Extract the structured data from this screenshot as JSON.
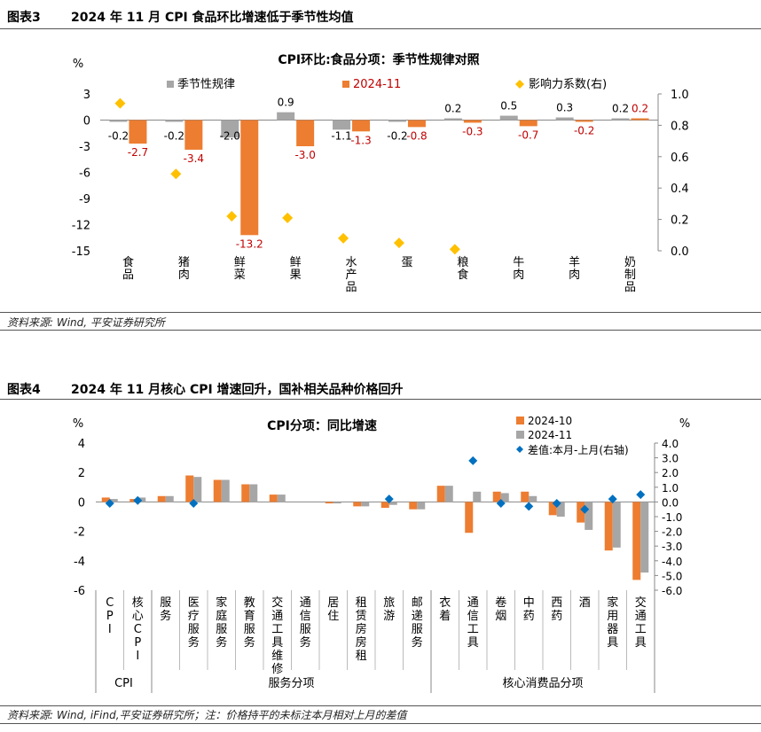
{
  "fig3": {
    "label": "图表3",
    "heading": "2024 年 11 月 CPI 食品环比增速低于季节性均值",
    "source": "资料来源: Wind, 平安证券研究所"
  },
  "fig4": {
    "label": "图表4",
    "heading": "2024 年 11 月核心 CPI 增速回升，国补相关品种价格回升",
    "source": "资料来源: Wind, iFind,平安证券研究所；注：价格持平的未标注本月相对上月的差值"
  },
  "chart_data": [
    {
      "type": "bar",
      "title": "CPI环比:食品分项：季节性规律对照",
      "ylabel_left": "%",
      "categories": [
        "食品",
        "猪肉",
        "鲜菜",
        "鲜果",
        "水产品",
        "蛋",
        "粮食",
        "牛肉",
        "羊肉",
        "奶制品"
      ],
      "series": [
        {
          "name": "季节性规律",
          "color": "#a6a6a6",
          "values": [
            -0.2,
            -0.2,
            -2.0,
            0.9,
            -1.1,
            -0.2,
            0.2,
            0.5,
            0.3,
            0.2
          ]
        },
        {
          "name": "2024-11",
          "color": "#ed7d31",
          "values": [
            -2.7,
            -3.4,
            -13.2,
            -3.0,
            -1.3,
            -0.8,
            -0.3,
            -0.7,
            -0.2,
            0.2
          ]
        }
      ],
      "scatter": {
        "name": "影响力系数(右)",
        "axis": "right",
        "color": "#ffc000",
        "values": [
          0.94,
          0.49,
          0.22,
          0.21,
          0.08,
          0.05,
          0.01,
          null,
          null,
          null
        ]
      },
      "ylim_left": [
        -15,
        3
      ],
      "yticks_left": [
        "3",
        "0",
        "-3",
        "-6",
        "-9",
        "-12",
        "-15"
      ],
      "ylim_right": [
        0,
        1
      ],
      "yticks_right": [
        "1.0",
        "0.8",
        "0.6",
        "0.4",
        "0.2",
        "0.0"
      ],
      "seasonal_labels": [
        "-0.2",
        "-0.2",
        "-2.0",
        "0.9",
        "-1.1",
        "-0.2",
        "0.2",
        "0.5",
        "0.3",
        "0.2"
      ],
      "nov_labels": [
        "-2.7",
        "-3.4",
        "-13.2",
        "-3.0",
        "-1.3",
        "-0.8",
        "-0.3",
        "-0.7",
        "-0.2",
        "0.2"
      ],
      "legend_position": "top"
    },
    {
      "type": "bar",
      "title": "CPI分项：同比增速",
      "ylabel_left": "%",
      "ylabel_right": "%",
      "categories": [
        "CPI",
        "核心CPI",
        "服务",
        "医疗服务",
        "家庭服务",
        "教育服务",
        "交通工具维修",
        "通信服务",
        "居住",
        "租赁房房租",
        "旅游",
        "邮递服务",
        "衣着",
        "通信工具",
        "卷烟",
        "中药",
        "西药",
        "酒",
        "家用器具",
        "交通工具"
      ],
      "series": [
        {
          "name": "2024-10",
          "color": "#ed7d31",
          "values": [
            0.3,
            0.2,
            0.4,
            1.8,
            1.5,
            1.2,
            0.5,
            0.0,
            -0.1,
            -0.3,
            -0.4,
            -0.5,
            1.1,
            -2.1,
            0.7,
            0.7,
            -0.9,
            -1.4,
            -3.3,
            -5.3
          ]
        },
        {
          "name": "2024-11",
          "color": "#a6a6a6",
          "values": [
            0.2,
            0.3,
            0.4,
            1.7,
            1.5,
            1.2,
            0.5,
            0.0,
            -0.1,
            -0.3,
            -0.2,
            -0.5,
            1.1,
            0.7,
            0.6,
            0.4,
            -1.0,
            -1.9,
            -3.1,
            -4.8
          ]
        }
      ],
      "scatter": {
        "name": "差值:本月-上月(右轴)",
        "axis": "right",
        "color": "#0070c0",
        "values": [
          -0.1,
          0.1,
          null,
          -0.1,
          null,
          null,
          null,
          null,
          null,
          null,
          0.2,
          null,
          null,
          2.8,
          -0.1,
          -0.3,
          -0.1,
          -0.5,
          0.2,
          0.5
        ]
      },
      "ylim_left": [
        -6,
        4
      ],
      "yticks_left": [
        "4",
        "2",
        "0",
        "-2",
        "-4",
        "-6"
      ],
      "ylim_right": [
        -6,
        4
      ],
      "yticks_right": [
        "4.0",
        "3.0",
        "2.0",
        "1.0",
        "0.0",
        "-1.0",
        "-2.0",
        "-3.0",
        "-4.0",
        "-5.0",
        "-6.0"
      ],
      "groups": [
        {
          "label": "CPI",
          "from": 0,
          "to": 1
        },
        {
          "label": "服务分项",
          "from": 2,
          "to": 11
        },
        {
          "label": "核心消费品分项",
          "from": 12,
          "to": 19
        }
      ],
      "legend_position": "top-right"
    }
  ]
}
